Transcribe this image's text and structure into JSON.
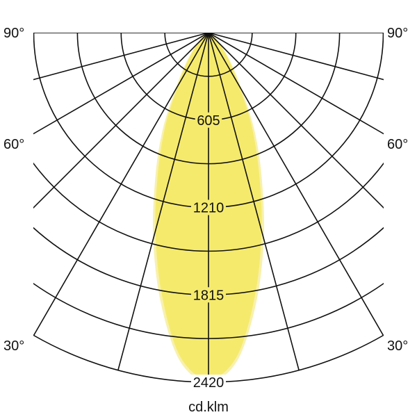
{
  "chart_data": {
    "type": "polar",
    "unit_label": "cd.klm",
    "radial_ticks": [
      605,
      1210,
      1815,
      2420
    ],
    "rmax": 2420,
    "angle_labels": [
      "90°",
      "60°",
      "30°"
    ],
    "angle_label_values": [
      90,
      60,
      30
    ],
    "grid": true,
    "series": [
      {
        "angles": [
          0,
          5,
          10,
          15,
          20,
          25,
          30,
          35,
          40,
          50,
          60,
          70,
          90
        ],
        "values": [
          2420,
          2280,
          1900,
          1480,
          1080,
          760,
          470,
          300,
          190,
          80,
          35,
          12,
          0
        ],
        "color": "#f8f1ad"
      },
      {
        "angles": [
          0,
          5,
          10,
          15,
          20,
          25,
          30,
          35,
          40,
          50,
          60,
          70,
          90
        ],
        "values": [
          2400,
          2250,
          1850,
          1420,
          1020,
          700,
          420,
          270,
          170,
          70,
          30,
          10,
          0
        ],
        "color": "#f5ea6c"
      }
    ]
  }
}
